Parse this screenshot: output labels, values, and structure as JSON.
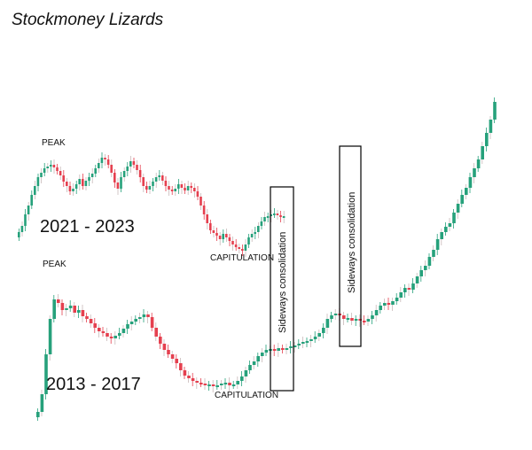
{
  "title": "Stockmoney Lizards",
  "colors": {
    "bull": "#26a17b",
    "bear": "#e5404f",
    "box": "#000000",
    "wick": "#c8b9b9"
  },
  "chart_data": {
    "type": "candlestick",
    "title": "Stockmoney Lizards",
    "xlabel": "",
    "ylabel": "",
    "grid": false,
    "series": [
      {
        "name": "2021 - 2023",
        "values": [
          262,
          255,
          242,
          232,
          220,
          210,
          200,
          195,
          190,
          188,
          186,
          189,
          193,
          198,
          205,
          210,
          216,
          213,
          208,
          202,
          210,
          204,
          200,
          196,
          190,
          184,
          178,
          180,
          186,
          195,
          206,
          213,
          200,
          193,
          188,
          182,
          186,
          192,
          200,
          210,
          214,
          210,
          205,
          200,
          198,
          204,
          210,
          214,
          216,
          213,
          208,
          212,
          215,
          210,
          212,
          216,
          222,
          232,
          242,
          252,
          260,
          263,
          266,
          270,
          264,
          268,
          272,
          276,
          279,
          281,
          283,
          276,
          268,
          264,
          262,
          255,
          250,
          245,
          244,
          242,
          241,
          243,
          245,
          244
        ]
      },
      {
        "name": "2013 - 2017",
        "values": [
          465,
          445,
          400,
          360,
          338,
          342,
          350,
          348,
          345,
          353,
          350,
          357,
          360,
          365,
          370,
          374,
          376,
          380,
          382,
          379,
          376,
          371,
          366,
          363,
          360,
          358,
          355,
          358,
          370,
          380,
          388,
          395,
          400,
          405,
          410,
          418,
          424,
          427,
          430,
          432,
          433,
          435,
          434,
          436,
          435,
          433,
          432,
          435,
          434,
          430,
          425,
          418,
          412,
          408,
          402,
          398,
          395,
          394,
          396,
          393,
          395,
          393,
          391,
          390,
          388,
          386,
          385,
          383,
          380,
          376,
          370,
          360,
          356,
          354,
          356,
          360,
          359,
          362,
          360,
          362,
          363,
          360,
          356,
          350,
          345,
          342,
          344,
          340,
          336,
          330,
          325,
          327,
          320,
          312,
          305,
          300,
          290,
          282,
          270,
          262,
          256,
          252,
          240,
          230,
          220,
          212,
          200,
          190,
          180,
          165,
          150,
          135,
          115
        ]
      }
    ],
    "annotations": {
      "peak_upper": "PEAK",
      "peak_lower": "PEAK",
      "capitulation_upper": "CAPITULATION",
      "capitulation_lower": "CAPITULATION",
      "period_upper": "2021 - 2023",
      "period_lower": "2013 - 2017",
      "box_upper": "Sideways consolidation",
      "box_lower": "Sideways consolidation"
    }
  }
}
